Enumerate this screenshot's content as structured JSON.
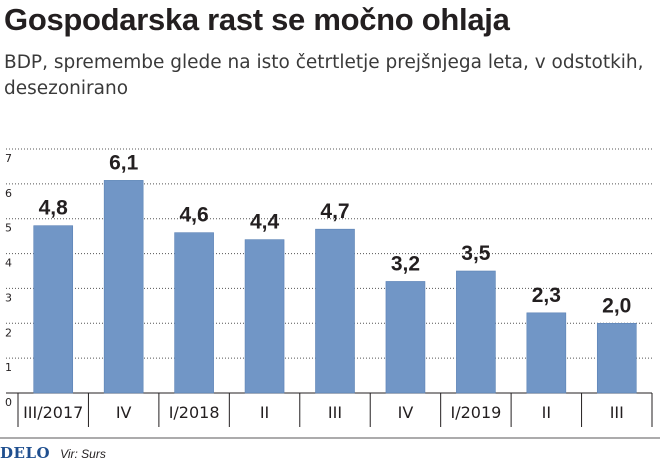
{
  "header": {
    "title": "Gospodarska rast se močno ohlaja",
    "subtitle": "BDP, spremembe glede na isto četrtletje prejšnjega leta, v odstotkih, desezonirano"
  },
  "footer": {
    "logo": "DELO",
    "source": "Vir: Surs"
  },
  "colors": {
    "bar": "#7196c6",
    "bar_edge": "#5b82b5",
    "grid": "#555555",
    "text": "#231f20"
  },
  "chart_data": {
    "type": "bar",
    "categories": [
      "III/2017",
      "IV",
      "I/2018",
      "II",
      "III",
      "IV",
      "I/2019",
      "II",
      "III"
    ],
    "values": [
      4.8,
      6.1,
      4.6,
      4.4,
      4.7,
      3.2,
      3.5,
      2.3,
      2.0
    ],
    "value_labels": [
      "4,8",
      "6,1",
      "4,6",
      "4,4",
      "4,7",
      "3,2",
      "3,5",
      "2,3",
      "2,0"
    ],
    "title": "",
    "xlabel": "",
    "ylabel": "",
    "ylim": [
      0,
      7
    ],
    "yticks": [
      0,
      1,
      2,
      3,
      4,
      5,
      6,
      7
    ],
    "grid": true,
    "legend": "none"
  }
}
